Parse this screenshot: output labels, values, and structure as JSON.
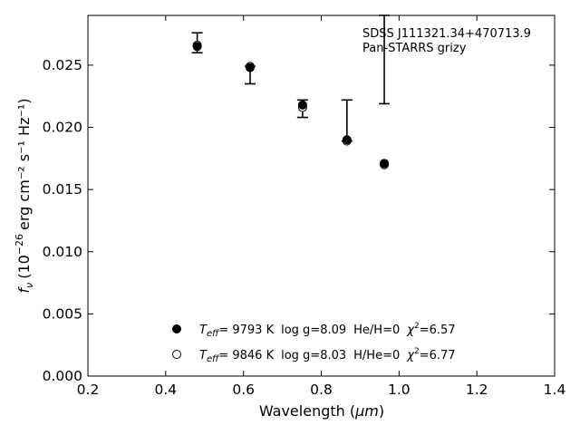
{
  "chart_data": {
    "type": "scatter",
    "xlabel": "Wavelength (μm)",
    "xlabel_plain": "Wavelength (",
    "xlabel_unit": "μm",
    "xlabel_close": ")",
    "ylabel_symbol": "f",
    "ylabel_sub": "ν",
    "ylabel_open": "(10",
    "ylabel_exp": "−26",
    "ylabel_units": "erg cm⁻² s⁻¹ Hz⁻¹)",
    "xlim": [
      0.2,
      1.4
    ],
    "ylim": [
      0.0,
      0.029
    ],
    "xticks": [
      "0.2",
      "0.4",
      "0.6",
      "0.8",
      "1.0",
      "1.2",
      "1.4"
    ],
    "yticks": [
      "0.000",
      "0.005",
      "0.010",
      "0.015",
      "0.020",
      "0.025"
    ],
    "annotation_lines": [
      "SDSS J111321.34+470713.9",
      "Pan-STARRS grizy"
    ],
    "observed": {
      "x": [
        0.481,
        0.617,
        0.752,
        0.866,
        0.962
      ],
      "y": [
        0.0264,
        0.0247,
        0.0217,
        0.019,
        0.017
      ],
      "err_low": [
        0.026,
        0.0235,
        0.0208,
        0.0189,
        0.0219
      ],
      "err_high": [
        0.0276,
        0.0249,
        0.0222,
        0.0222,
        0.029
      ]
    },
    "series": [
      {
        "marker": "filled",
        "teff": "9793 K",
        "logg": "log g=8.09",
        "comp": "He/H=0",
        "chi2": "6.57",
        "values": [
          0.0265,
          0.0248,
          0.0218,
          0.019,
          0.0171
        ]
      },
      {
        "marker": "open",
        "teff": "9846 K",
        "logg": "log g=8.03",
        "comp": "H/He=0",
        "chi2": "6.77",
        "values": [
          0.0266,
          0.0249,
          0.0216,
          0.0189,
          0.017
        ]
      }
    ],
    "legend_placement": "bottom-center",
    "grid": false
  }
}
